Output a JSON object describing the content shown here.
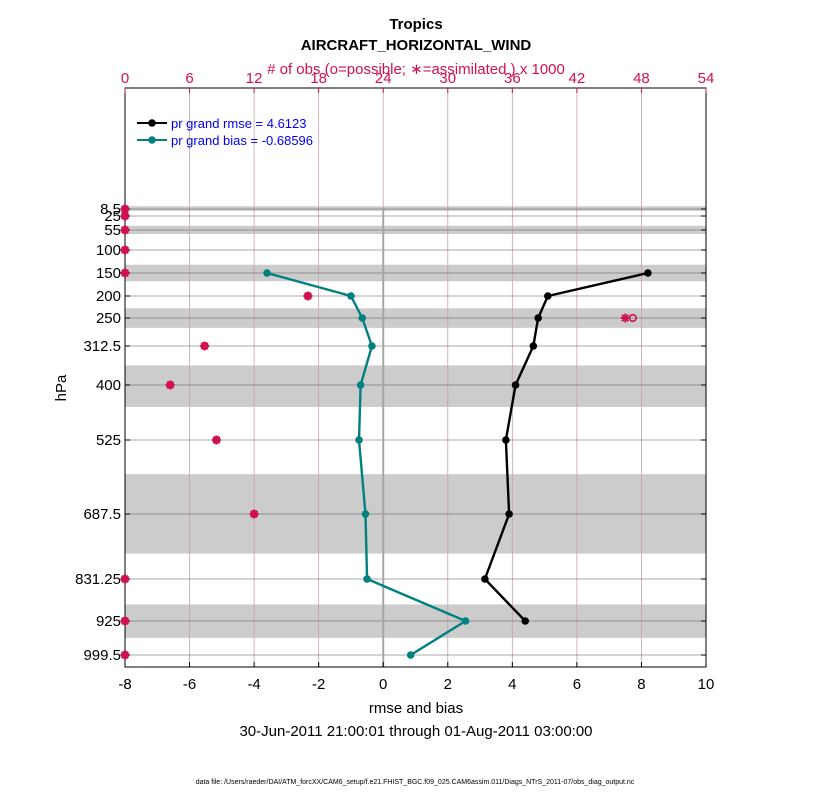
{
  "colors": {
    "obs": "#d1114f",
    "rmse": "#000000",
    "bias": "#00807f",
    "legend_text": "#0000ee",
    "band": "#cccccc",
    "grid": "#c2a3b1",
    "zero_line": "#a6a6a6"
  },
  "chart_data": {
    "type": "line",
    "title": "Tropics",
    "subtitle": "AIRCRAFT_HORIZONTAL_WIND",
    "xlabel": "rmse and bias",
    "ylabel": "hPa",
    "date_range": "30-Jun-2011 21:00:01 through 01-Aug-2011 03:00:00",
    "footer": "data file: /Users/raeder/DAI/ATM_forcXX/CAM6_setup/f.e21.FHIST_BGC.f09_025.CAM6assim.011/Diags_NTrS_2011-07/obs_diag_output.nc",
    "xlim": [
      -8,
      10
    ],
    "xticks": [
      -8,
      -6,
      -4,
      -2,
      0,
      2,
      4,
      6,
      8,
      10
    ],
    "top_axis": {
      "label": "# of obs (o=possible; ∗=assimilated ) x 1000",
      "lim": [
        0,
        54
      ],
      "ticks": [
        0,
        6,
        12,
        18,
        24,
        30,
        36,
        42,
        48,
        54
      ]
    },
    "levels": [
      8.5,
      25,
      55,
      100,
      150,
      200,
      250,
      312.5,
      400,
      525,
      687.5,
      831.25,
      925,
      999.5
    ],
    "level_labels": [
      "8.5",
      "25",
      "55",
      "100",
      "150",
      "200",
      "250",
      "312.5",
      "400",
      "525",
      "687.5",
      "831.25",
      "925",
      "999.5"
    ],
    "shaded_layers": [
      [
        2,
        13
      ],
      [
        46,
        64
      ],
      [
        132,
        168
      ],
      [
        228,
        272
      ],
      [
        356,
        450
      ],
      [
        600,
        775
      ],
      [
        888,
        962
      ]
    ],
    "legend": {
      "position": "top-left",
      "rmse_label": "pr grand rmse = 4.6123",
      "bias_label": "pr grand bias = -0.68596"
    },
    "series": [
      {
        "name": "rmse",
        "levels": [
          150,
          200,
          250,
          312.5,
          400,
          525,
          687.5,
          831.25,
          925
        ],
        "values": [
          8.2,
          5.1,
          4.8,
          4.65,
          4.1,
          3.8,
          3.9,
          3.15,
          4.4
        ]
      },
      {
        "name": "bias",
        "levels": [
          150,
          200,
          250,
          312.5,
          400,
          525,
          687.5,
          831.25,
          925,
          999.5
        ],
        "values": [
          -3.6,
          -1.0,
          -0.65,
          -0.35,
          -0.7,
          -0.75,
          -0.55,
          -0.5,
          2.55,
          0.85
        ]
      }
    ],
    "obs_assimilated": {
      "levels": [
        8.5,
        25,
        55,
        100,
        150,
        200,
        250,
        312.5,
        400,
        525,
        687.5,
        831.25,
        925,
        999.5
      ],
      "values": [
        0,
        0,
        0,
        0,
        0,
        17,
        46.5,
        7.4,
        4.2,
        8.5,
        12,
        0,
        0,
        0
      ]
    },
    "obs_possible": {
      "levels": [
        8.5,
        25,
        55,
        100,
        150,
        200,
        250,
        312.5,
        400,
        525,
        687.5,
        831.25,
        925,
        999.5
      ],
      "values": [
        0,
        0,
        0,
        0,
        0,
        17,
        47.2,
        7.4,
        4.2,
        8.5,
        12,
        0,
        0,
        0
      ]
    }
  }
}
